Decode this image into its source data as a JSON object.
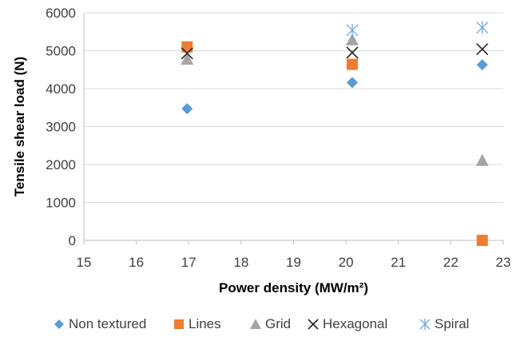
{
  "chart_data": {
    "type": "scatter",
    "title": "",
    "xlabel": "Power density (MW/m²)",
    "ylabel": "Tensile shear load (N)",
    "xlim": [
      15,
      23
    ],
    "ylim": [
      0,
      6000
    ],
    "xticks": [
      15,
      16,
      17,
      18,
      19,
      20,
      21,
      22,
      23
    ],
    "yticks": [
      0,
      1000,
      2000,
      3000,
      4000,
      5000,
      6000
    ],
    "grid": "horizontal",
    "legend_position": "bottom",
    "series": [
      {
        "name": "Non textured",
        "marker": "diamond",
        "color": "#5B9BD5",
        "points": [
          [
            16.97,
            3470
          ],
          [
            20.12,
            4160
          ],
          [
            22.6,
            4630
          ]
        ]
      },
      {
        "name": "Lines",
        "marker": "square",
        "color": "#ED7D31",
        "points": [
          [
            16.97,
            5100
          ],
          [
            20.12,
            4640
          ],
          [
            22.6,
            0
          ]
        ]
      },
      {
        "name": "Grid",
        "marker": "triangle",
        "color": "#A5A5A5",
        "points": [
          [
            16.97,
            4780
          ],
          [
            20.12,
            5290
          ],
          [
            22.6,
            2110
          ]
        ]
      },
      {
        "name": "Hexagonal",
        "marker": "x",
        "color": "#262626",
        "points": [
          [
            16.97,
            4930
          ],
          [
            20.12,
            4950
          ],
          [
            22.6,
            5040
          ]
        ]
      },
      {
        "name": "Spiral",
        "marker": "star",
        "color": "#6FA8DC",
        "points": [
          [
            20.12,
            5540
          ],
          [
            22.6,
            5610
          ]
        ]
      }
    ]
  }
}
